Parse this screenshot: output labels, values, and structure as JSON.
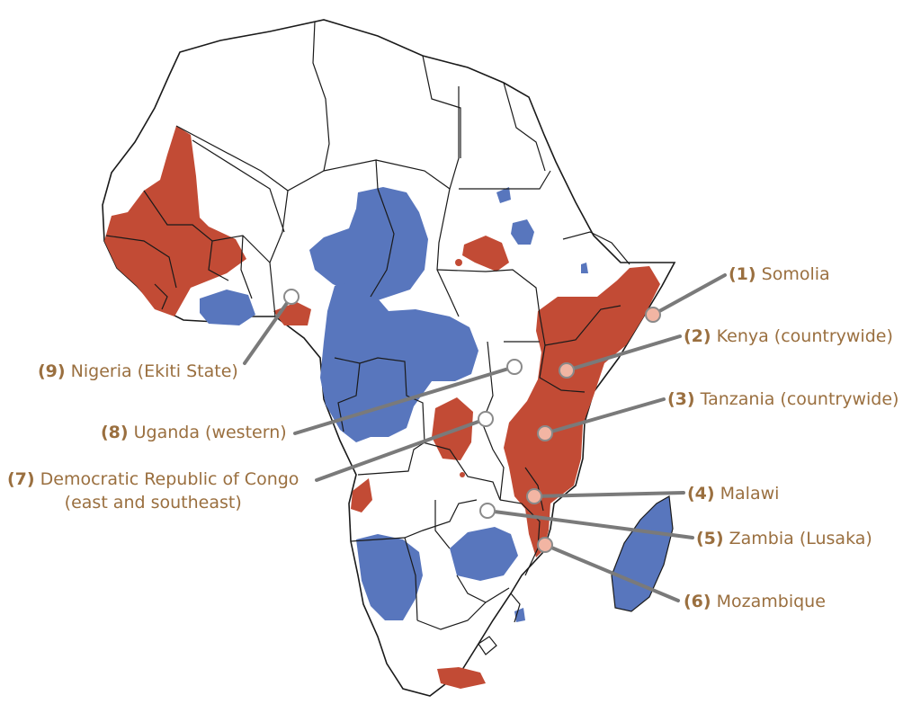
{
  "colors": {
    "red_zone": "#c24b35",
    "blue_zone": "#5876bd",
    "land": "#ffffff",
    "border": "#1a1a1a",
    "leader": "#7a7a7a",
    "label_text": "#9a6f3f",
    "marker_fill_filled": "#f2b5a3",
    "marker_fill_open": "#ffffff",
    "marker_stroke": "#8a8a8a"
  },
  "locations": [
    {
      "id": "somalia",
      "number": "(1)",
      "name": "Somolia",
      "subname": "",
      "marker": "filled"
    },
    {
      "id": "kenya",
      "number": "(2)",
      "name": "Kenya (countrywide)",
      "subname": "",
      "marker": "filled"
    },
    {
      "id": "tanzania",
      "number": "(3)",
      "name": "Tanzania (countrywide)",
      "subname": "",
      "marker": "filled"
    },
    {
      "id": "malawi",
      "number": "(4)",
      "name": "Malawi",
      "subname": "",
      "marker": "filled"
    },
    {
      "id": "zambia",
      "number": "(5)",
      "name": "Zambia (Lusaka)",
      "subname": "",
      "marker": "open"
    },
    {
      "id": "mozambique",
      "number": "(6)",
      "name": "Mozambique",
      "subname": "",
      "marker": "filled"
    },
    {
      "id": "drc",
      "number": "(7)",
      "name": "Democratic Republic of Congo",
      "subname": "(east and southeast)",
      "marker": "open"
    },
    {
      "id": "uganda",
      "number": "(8)",
      "name": "Uganda (western)",
      "subname": "",
      "marker": "open"
    },
    {
      "id": "nigeria",
      "number": "(9)",
      "name": "Nigeria (Ekiti State)",
      "subname": "",
      "marker": "open"
    }
  ]
}
